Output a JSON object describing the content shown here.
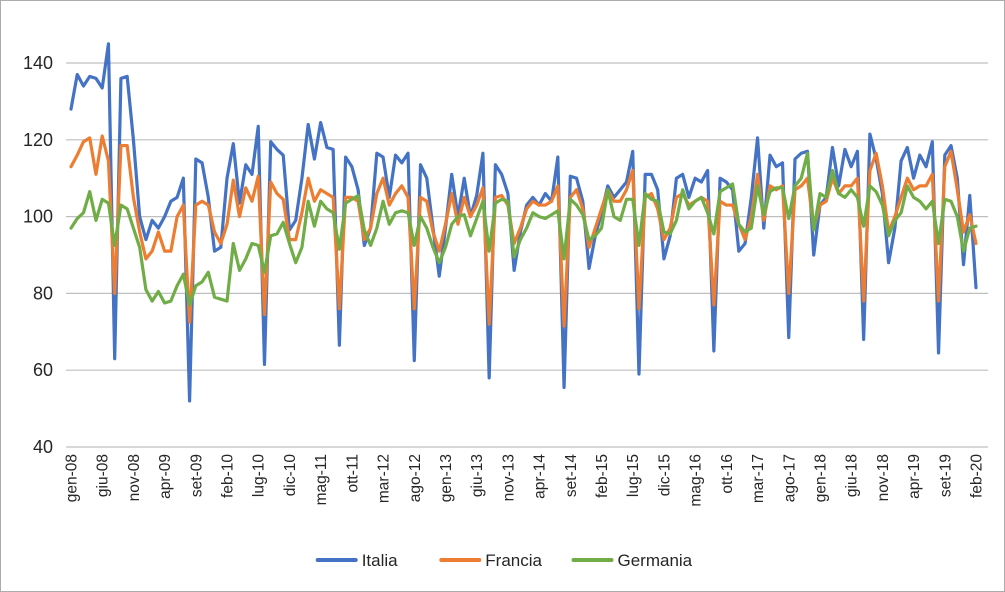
{
  "window": {
    "background": "#ffffff",
    "border_color": "#ababab"
  },
  "chart_data": {
    "type": "line",
    "title": "",
    "xlabel": "",
    "ylabel": "",
    "ylim": [
      40,
      140
    ],
    "yticks": [
      40,
      60,
      80,
      100,
      120,
      140
    ],
    "grid": true,
    "gridline_color": "#bfbfbf",
    "axis_line_color": "#bfbfbf",
    "axis_text_color": "#262626",
    "legend_position": "bottom",
    "tick_interval": 5,
    "visible_tick_labels": [
      "gen-08",
      "giu-08",
      "nov-08",
      "apr-09",
      "set-09",
      "feb-10",
      "lug-10",
      "dic-10",
      "mag-11",
      "ott-11",
      "mar-12",
      "ago-12",
      "gen-13",
      "giu-13",
      "nov-13",
      "apr-14",
      "set-14",
      "feb-15",
      "lug-15",
      "dic-15",
      "mag-16",
      "ott-16",
      "mar-17",
      "ago-17",
      "gen-18",
      "giu-18",
      "nov-18",
      "apr-19",
      "set-19",
      "feb-20"
    ],
    "categories": [
      "gen-08",
      "feb-08",
      "mar-08",
      "apr-08",
      "mag-08",
      "giu-08",
      "lug-08",
      "ago-08",
      "set-08",
      "ott-08",
      "nov-08",
      "dic-08",
      "gen-09",
      "feb-09",
      "mar-09",
      "apr-09",
      "mag-09",
      "giu-09",
      "lug-09",
      "ago-09",
      "set-09",
      "ott-09",
      "nov-09",
      "dic-09",
      "gen-10",
      "feb-10",
      "mar-10",
      "apr-10",
      "mag-10",
      "giu-10",
      "lug-10",
      "ago-10",
      "set-10",
      "ott-10",
      "nov-10",
      "dic-10",
      "gen-11",
      "feb-11",
      "mar-11",
      "apr-11",
      "mag-11",
      "giu-11",
      "lug-11",
      "ago-11",
      "set-11",
      "ott-11",
      "nov-11",
      "dic-11",
      "gen-12",
      "feb-12",
      "mar-12",
      "apr-12",
      "mag-12",
      "giu-12",
      "lug-12",
      "ago-12",
      "set-12",
      "ott-12",
      "nov-12",
      "dic-12",
      "gen-13",
      "feb-13",
      "mar-13",
      "apr-13",
      "mag-13",
      "giu-13",
      "lug-13",
      "ago-13",
      "set-13",
      "ott-13",
      "nov-13",
      "dic-13",
      "gen-14",
      "feb-14",
      "mar-14",
      "apr-14",
      "mag-14",
      "giu-14",
      "lug-14",
      "ago-14",
      "set-14",
      "ott-14",
      "nov-14",
      "dic-14",
      "gen-15",
      "feb-15",
      "mar-15",
      "apr-15",
      "mag-15",
      "giu-15",
      "lug-15",
      "ago-15",
      "set-15",
      "ott-15",
      "nov-15",
      "dic-15",
      "gen-16",
      "feb-16",
      "mar-16",
      "apr-16",
      "mag-16",
      "giu-16",
      "lug-16",
      "ago-16",
      "set-16",
      "ott-16",
      "nov-16",
      "dic-16",
      "gen-17",
      "feb-17",
      "mar-17",
      "apr-17",
      "mag-17",
      "giu-17",
      "lug-17",
      "ago-17",
      "set-17",
      "ott-17",
      "nov-17",
      "dic-17",
      "gen-18",
      "feb-18",
      "mar-18",
      "apr-18",
      "mag-18",
      "giu-18",
      "lug-18",
      "ago-18",
      "set-18",
      "ott-18",
      "nov-18",
      "dic-18",
      "gen-19",
      "feb-19",
      "mar-19",
      "apr-19",
      "mag-19",
      "giu-19",
      "lug-19",
      "ago-19",
      "set-19",
      "ott-19",
      "nov-19",
      "dic-19",
      "gen-20",
      "feb-20"
    ],
    "series": [
      {
        "name": "Italia",
        "color": "#4472C4",
        "values": [
          128,
          137,
          134,
          136.5,
          136,
          133.5,
          145,
          63,
          136,
          136.5,
          120,
          100,
          94,
          99,
          97,
          100,
          104,
          105,
          110,
          52,
          115,
          114,
          105,
          91,
          92,
          110,
          119,
          103.5,
          113.5,
          111,
          123.5,
          61.5,
          119.5,
          117.5,
          116,
          96.5,
          99,
          110,
          124,
          115,
          124.5,
          118,
          117.5,
          66.5,
          115.5,
          113,
          107,
          92.5,
          97,
          116.5,
          115.5,
          105,
          116,
          114,
          116.5,
          62.5,
          113.5,
          110,
          97,
          84.5,
          97,
          111,
          100,
          110,
          100,
          105.5,
          116.5,
          58,
          113.5,
          111,
          106,
          86,
          96,
          103,
          105,
          103,
          106,
          104,
          115.5,
          55.5,
          110.5,
          110,
          104,
          86.5,
          95,
          101,
          108,
          105,
          107,
          109,
          117,
          59,
          111,
          111,
          107,
          89,
          95,
          110,
          111,
          105,
          110,
          109,
          112,
          65,
          110,
          109,
          107,
          91,
          93,
          105,
          120.5,
          97,
          116,
          113,
          114,
          68.5,
          115,
          116.5,
          117,
          90,
          103,
          105,
          118,
          108,
          117.5,
          113,
          117,
          68,
          121.5,
          115,
          106,
          88,
          97,
          114.5,
          118,
          110,
          116,
          113,
          119.5,
          64.5,
          116,
          118.5,
          110,
          87.5,
          105.5,
          81.5
        ]
      },
      {
        "name": "Francia",
        "color": "#ED7D31",
        "values": [
          113,
          116,
          119.5,
          120.5,
          111,
          121,
          114.5,
          80,
          118.5,
          118.5,
          105,
          96,
          89,
          91,
          96,
          91,
          91,
          100,
          103,
          72.5,
          103,
          104,
          103,
          96,
          93,
          98,
          109.5,
          100,
          107.5,
          104,
          110.5,
          74.5,
          109,
          106,
          104.5,
          94,
          94,
          101,
          110,
          104,
          107,
          106,
          105,
          76,
          105,
          105,
          104,
          94,
          97,
          106,
          110,
          103,
          106,
          108,
          105,
          76,
          105,
          104,
          96,
          91,
          98,
          106,
          98,
          105,
          100,
          103,
          107.5,
          72,
          105,
          105.5,
          103,
          93,
          97,
          102,
          104,
          103,
          103,
          104,
          108,
          71.5,
          105,
          107,
          102,
          92,
          97,
          102,
          107,
          104,
          104,
          107,
          112,
          76,
          105,
          106,
          102,
          94,
          97,
          105,
          106,
          103,
          104,
          105,
          104,
          77,
          104,
          103,
          103,
          98,
          94,
          100,
          111,
          99,
          108,
          107,
          108,
          80,
          107,
          108,
          110,
          97,
          103,
          104,
          110,
          106,
          108,
          108,
          110,
          78,
          112,
          116.5,
          108,
          96,
          100,
          105,
          110,
          107,
          108,
          108,
          111,
          78,
          113,
          117,
          107,
          96,
          100.5,
          93
        ]
      },
      {
        "name": "Germania",
        "color": "#70AD47",
        "values": [
          97,
          99.5,
          101,
          106.5,
          99,
          104.5,
          103.5,
          92.5,
          103,
          102,
          97,
          92,
          81,
          78,
          80.5,
          77.5,
          78,
          82,
          85,
          77,
          82,
          83,
          85.5,
          79,
          78.5,
          78,
          93,
          86,
          89,
          93,
          92.5,
          85.5,
          95,
          95.5,
          98.5,
          93,
          88,
          92,
          104,
          97.5,
          104,
          102,
          101,
          91.5,
          103.5,
          104.5,
          105.5,
          96.5,
          92.5,
          97,
          104,
          98,
          101,
          101.5,
          101,
          92.5,
          100,
          97,
          92,
          88,
          92,
          98,
          100,
          100.5,
          95,
          99.5,
          104,
          91,
          103.5,
          104.5,
          104,
          89.5,
          94,
          97,
          101,
          100,
          99.5,
          100.5,
          101.5,
          89,
          104.5,
          103,
          100.5,
          94,
          95,
          97,
          107,
          100,
          99,
          104.5,
          104.5,
          92.5,
          106,
          104.5,
          104,
          96,
          95.5,
          99,
          107,
          102,
          104,
          105,
          101,
          95.5,
          106.5,
          107.5,
          108.5,
          98,
          96,
          97,
          108,
          100.5,
          106.5,
          107.5,
          107.5,
          99.5,
          108,
          110,
          116.5,
          96.5,
          106,
          105,
          112,
          106,
          105,
          107,
          105,
          97.5,
          108,
          106.5,
          103,
          95,
          99,
          101,
          108,
          105,
          104,
          102,
          104,
          93,
          104.5,
          104,
          100,
          91,
          97,
          97.5
        ]
      }
    ]
  }
}
